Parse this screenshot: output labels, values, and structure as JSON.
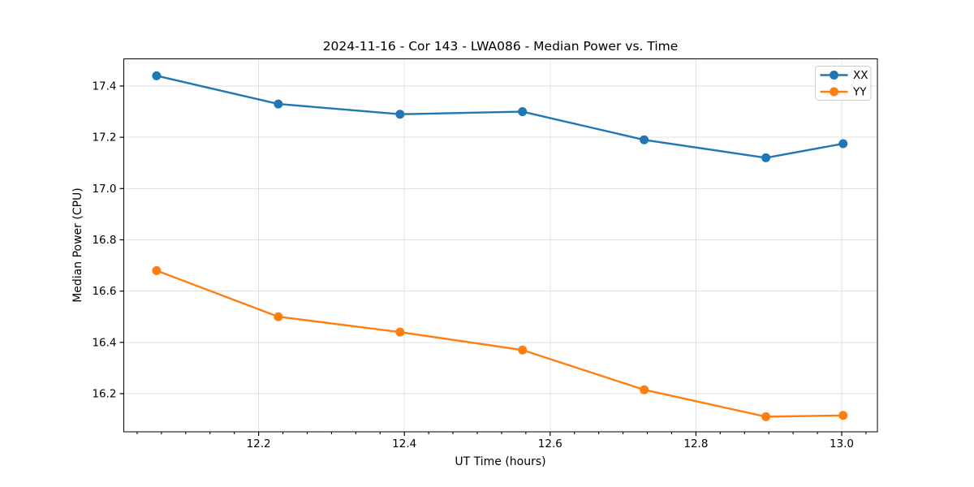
{
  "figure": {
    "title": "2024-11-16 - Cor 143 - LWA086 - Median Power vs. Time",
    "xlabel": "UT Time (hours)",
    "ylabel": "Median Power (CPU)"
  },
  "chart_data": {
    "type": "line",
    "title": "2024-11-16 - Cor 143 - LWA086 - Median Power vs. Time",
    "xlabel": "UT Time (hours)",
    "ylabel": "Median Power (CPU)",
    "x": [
      12.06,
      12.227,
      12.394,
      12.562,
      12.729,
      12.896,
      13.002
    ],
    "series": [
      {
        "name": "XX",
        "color": "#1f77b4",
        "marker": "circle",
        "values": [
          17.44,
          17.33,
          17.29,
          17.3,
          17.19,
          17.12,
          17.175
        ]
      },
      {
        "name": "YY",
        "color": "#ff7f0e",
        "marker": "circle",
        "values": [
          16.68,
          16.5,
          16.44,
          16.37,
          16.215,
          16.11,
          16.115
        ]
      }
    ],
    "xlim": [
      12.015,
      13.049
    ],
    "ylim": [
      16.051,
      17.506
    ],
    "xticks": [
      12.2,
      12.4,
      12.6,
      12.8,
      13.0
    ],
    "yticks": [
      16.2,
      16.4,
      16.6,
      16.8,
      17.0,
      17.2,
      17.4
    ],
    "minor_xtick_step": 0.0333333,
    "grid": true,
    "grid_color": "#e0e0e0",
    "legend_position": "upper right",
    "legend_labels": [
      "XX",
      "YY"
    ]
  }
}
